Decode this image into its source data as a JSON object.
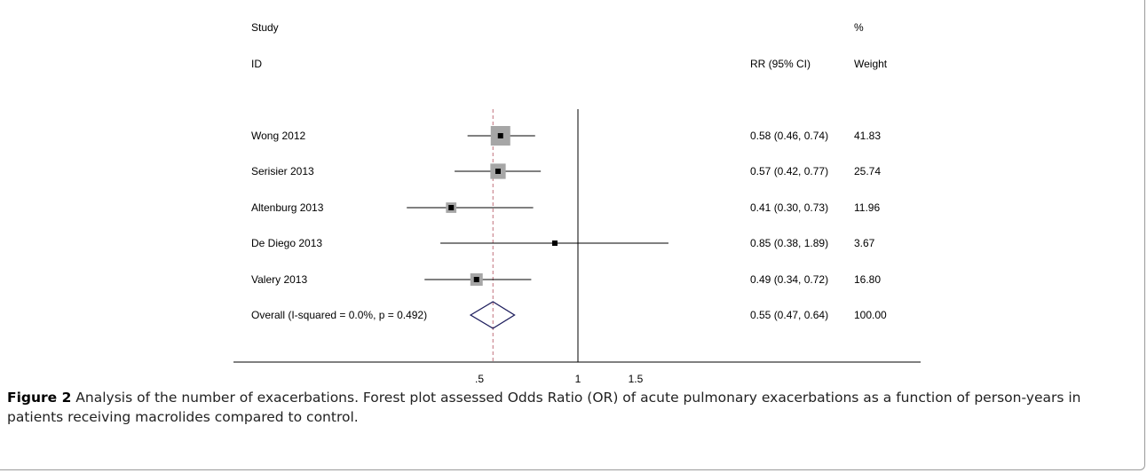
{
  "chart_data": {
    "type": "forest",
    "headers": {
      "study": "Study",
      "id": "ID",
      "pct": "%",
      "rr": "RR (95% CI)",
      "weight": "Weight"
    },
    "studies": [
      {
        "label": "Wong 2012",
        "rr": 0.58,
        "ci_low": 0.46,
        "ci_high": 0.74,
        "weight": 41.83,
        "rr_text": "0.58 (0.46, 0.74)",
        "weight_text": "41.83"
      },
      {
        "label": "Serisier 2013",
        "rr": 0.57,
        "ci_low": 0.42,
        "ci_high": 0.77,
        "weight": 25.74,
        "rr_text": "0.57 (0.42, 0.77)",
        "weight_text": "25.74"
      },
      {
        "label": "Altenburg 2013",
        "rr": 0.41,
        "ci_low": 0.3,
        "ci_high": 0.73,
        "weight": 11.96,
        "rr_text": "0.41 (0.30, 0.73)",
        "weight_text": "11.96"
      },
      {
        "label": "De Diego 2013",
        "rr": 0.85,
        "ci_low": 0.38,
        "ci_high": 1.89,
        "weight": 3.67,
        "rr_text": "0.85 (0.38, 1.89)",
        "weight_text": "3.67"
      },
      {
        "label": "Valery 2013",
        "rr": 0.49,
        "ci_low": 0.34,
        "ci_high": 0.72,
        "weight": 16.8,
        "rr_text": "0.49 (0.34, 0.72)",
        "weight_text": "16.80"
      }
    ],
    "overall": {
      "label": "Overall  (I-squared = 0.0%, p = 0.492)",
      "rr": 0.55,
      "ci_low": 0.47,
      "ci_high": 0.64,
      "rr_text": "0.55 (0.47, 0.64)",
      "weight_text": "100.00"
    },
    "x_ticks": [
      {
        "value": 0.5,
        "label": ".5"
      },
      {
        "value": 1,
        "label": "1"
      },
      {
        "value": 1.5,
        "label": "1.5"
      }
    ],
    "x_scale": "log",
    "null_line": 1,
    "xlim": [
      0.24,
      1.9
    ]
  },
  "caption": {
    "label": "Figure 2",
    "text": " Analysis of the number of exacerbations. Forest plot assessed Odds Ratio (OR) of acute pulmonary exacerbations as a function of person-years in patients receiving macrolides compared to control."
  },
  "colors": {
    "marker": "#000000",
    "weight_box": "#a6a6a6",
    "diamond": "#1f1f5e",
    "overall_line": "#c0707a",
    "frame": "#9a9a9a"
  }
}
